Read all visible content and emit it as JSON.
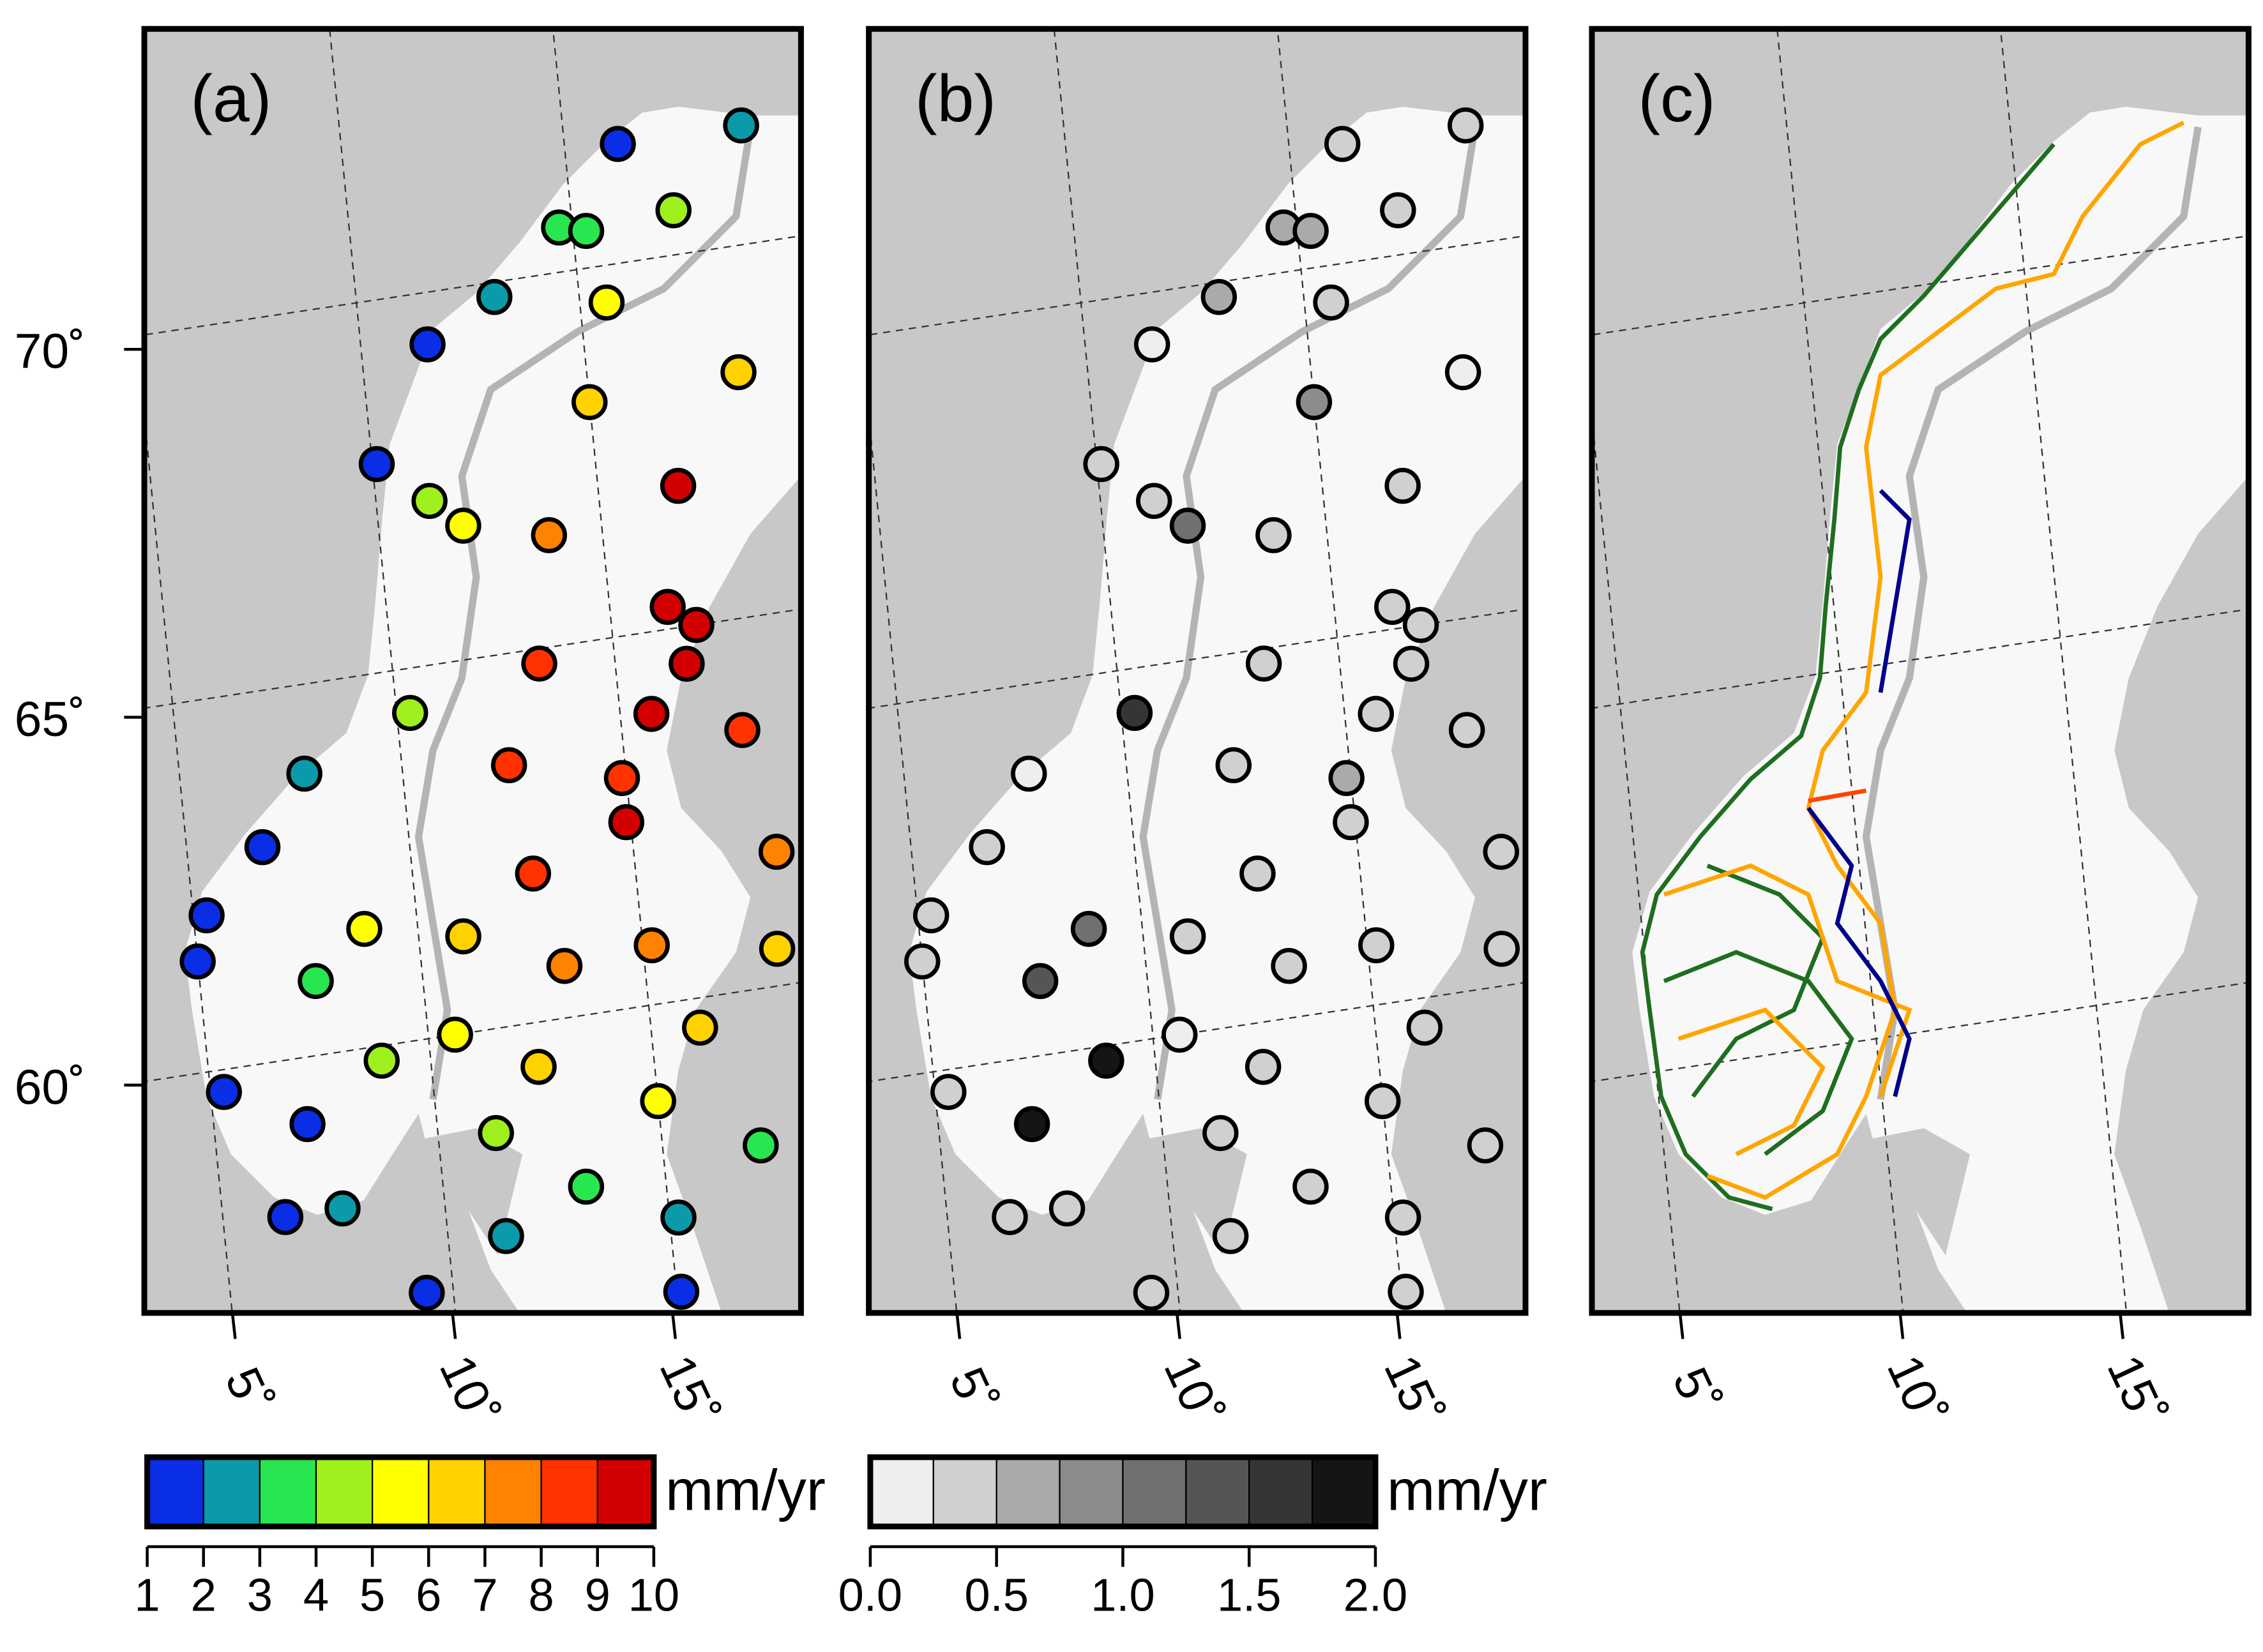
{
  "panels": [
    {
      "label": "(a)"
    },
    {
      "label": "(b)"
    },
    {
      "label": "(c)"
    }
  ],
  "map": {
    "lat_ticks": [
      {
        "value": 70,
        "label": "70˚"
      },
      {
        "value": 65,
        "label": "65˚"
      },
      {
        "value": 60,
        "label": "60˚"
      }
    ],
    "lon_ticks": [
      {
        "value": 5,
        "label": "5˚"
      },
      {
        "value": 10,
        "label": "10˚"
      },
      {
        "value": 15,
        "label": "15˚"
      }
    ]
  },
  "stations": {
    "lon": [
      16.2,
      19.0,
      17.3,
      14.7,
      15.3,
      15.6,
      11.5,
      13.1,
      18.4,
      15.0,
      10.1,
      16.8,
      13.8,
      11.2,
      11.9,
      16.3,
      16.9,
      13.3,
      16.6,
      15.7,
      17.7,
      10.3,
      12.4,
      14.9,
      14.9,
      18.2,
      12.7,
      7.8,
      6.7,
      5.3,
      5.0,
      5.3,
      7.6,
      8.9,
      8.8,
      11.0,
      13.2,
      15.2,
      18.0,
      12.4,
      15.0,
      11.3,
      7.1,
      6.4,
      7.7,
      13.2,
      17.2,
      15.2,
      11.3,
      9.4,
      15.1,
      10.6,
      16.1
    ],
    "lat": [
      71.6,
      71.6,
      70.6,
      70.6,
      70.5,
      69.5,
      69.3,
      69.8,
      68.3,
      68.2,
      67.8,
      66.9,
      66.5,
      67.2,
      66.8,
      65.3,
      65.0,
      64.8,
      64.5,
      63.9,
      63.5,
      64.4,
      63.5,
      63.1,
      62.5,
      61.8,
      62.0,
      63.8,
      62.9,
      62.1,
      61.5,
      59.7,
      61.0,
      59.8,
      61.6,
      61.3,
      60.7,
      60.8,
      60.5,
      59.4,
      58.7,
      58.6,
      59.1,
      57.9,
      57.9,
      57.7,
      57.9,
      57.1,
      57.2,
      56.6,
      56.1,
      60.0,
      59.6
    ],
    "velocity": [
      1.5,
      2.5,
      4.5,
      3.5,
      3.5,
      5.8,
      1.5,
      2.5,
      6.5,
      6.5,
      1.5,
      9.5,
      7.5,
      4,
      5.5,
      9,
      9.5,
      8.5,
      9.5,
      9,
      8.5,
      4.5,
      8.5,
      8.5,
      9,
      7.5,
      8.5,
      2.5,
      1.5,
      1.5,
      1.5,
      1.5,
      3.5,
      4.5,
      5.5,
      6.5,
      7.5,
      7.5,
      6.5,
      6.5,
      5.5,
      4.5,
      1.5,
      1.5,
      2.5,
      3.5,
      3.5,
      2.5,
      2.5,
      1.5,
      1.5,
      5.5,
      6
    ],
    "uncertainty": [
      0.4,
      0.3,
      0.3,
      0.6,
      0.7,
      0.3,
      0.2,
      0.5,
      0.2,
      0.9,
      0.3,
      0.4,
      0.4,
      0.4,
      1.0,
      0.3,
      0.3,
      0.3,
      0.3,
      0.3,
      0.3,
      1.6,
      0.3,
      0.5,
      0.3,
      0.3,
      0.3,
      0.2,
      0.3,
      0.3,
      0.3,
      0.4,
      1.3,
      1.8,
      1.0,
      0.3,
      0.3,
      0.3,
      0.3,
      0.4,
      0.3,
      0.4,
      1.8,
      0.4,
      0.4,
      0.3,
      0.3,
      0.3,
      0.3,
      0.3,
      0.3,
      0.2,
      0.3
    ]
  },
  "velocity_scale": {
    "unit": "mm/yr",
    "lim": [
      1,
      10
    ],
    "ticks": [
      1,
      2,
      3,
      4,
      5,
      6,
      7,
      8,
      9,
      10
    ],
    "colors": [
      "#0a2de6",
      "#0a9aaa",
      "#28e650",
      "#a0f01e",
      "#ffff00",
      "#ffd200",
      "#ff8200",
      "#ff3200",
      "#d20000"
    ]
  },
  "uncertainty_scale": {
    "unit": "mm/yr",
    "lim": [
      0,
      2
    ],
    "ticks": [
      {
        "value": 0,
        "label": "0.0"
      },
      {
        "value": 0.5,
        "label": "0.5"
      },
      {
        "value": 1,
        "label": "1.0"
      },
      {
        "value": 1.5,
        "label": "1.5"
      },
      {
        "value": 2,
        "label": "2.0"
      }
    ],
    "colors": [
      "#eeeeee",
      "#d0d0d0",
      "#aaaaaa",
      "#8c8c8c",
      "#707070",
      "#555555",
      "#353535",
      "#151515"
    ]
  }
}
